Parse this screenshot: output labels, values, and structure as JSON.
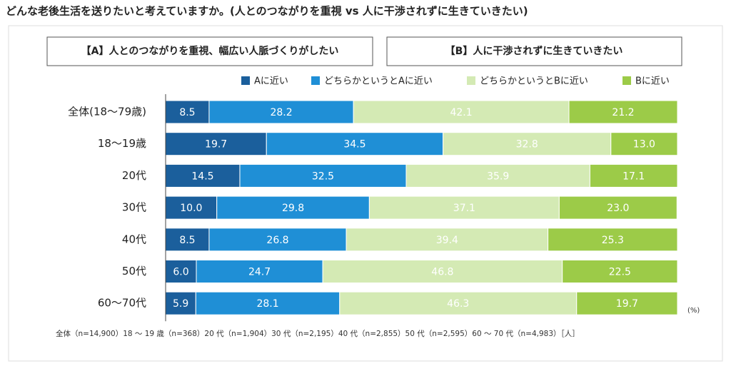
{
  "chart_data": {
    "type": "bar",
    "orientation": "horizontal",
    "stacked": true,
    "title": "どんな老後生活を送りたいと考えていますか。(人とのつながりを重視 vs 人に干渉されずに生きていきたい)",
    "headers": [
      "【A】人とのつながりを重視、幅広い人脈づくりがしたい",
      "【B】人に干渉されずに生きていきたい"
    ],
    "categories": [
      "全体(18〜79歳)",
      "18〜19歳",
      "20代",
      "30代",
      "40代",
      "50代",
      "60〜70代"
    ],
    "series": [
      {
        "name": "Aに近い",
        "color": "#1b5f9c",
        "values": [
          8.5,
          19.7,
          14.5,
          10,
          8.5,
          6,
          5.9
        ],
        "value_labels": [
          "8.5",
          "19.7",
          "14.5",
          "10.0",
          "8.5",
          "6.0",
          "5.9"
        ]
      },
      {
        "name": "どちらかというとAに近い",
        "color": "#1f8fd6",
        "values": [
          28.2,
          34.5,
          32.5,
          29.8,
          26.8,
          24.7,
          28.1
        ],
        "value_labels": [
          "28.2",
          "34.5",
          "32.5",
          "29.8",
          "26.8",
          "24.7",
          "28.1"
        ]
      },
      {
        "name": "どちらかというとBに近い",
        "color": "#d4eab4",
        "values": [
          42.1,
          32.8,
          35.9,
          37.1,
          39.4,
          46.8,
          46.3
        ],
        "value_labels": [
          "42.1",
          "32.8",
          "35.9",
          "37.1",
          "39.4",
          "46.8",
          "46.3"
        ]
      },
      {
        "name": "Bに近い",
        "color": "#9ccb48",
        "values": [
          21.2,
          13,
          17.1,
          23,
          25.3,
          22.5,
          19.7
        ],
        "value_labels": [
          "21.2",
          "13.0",
          "17.1",
          "23.0",
          "25.3",
          "22.5",
          "19.7"
        ]
      }
    ],
    "xlim": [
      0,
      100
    ],
    "unit": "(%)",
    "note": "全体（n=14,900）18 ～ 19 歳（n=368）20 代（n=1,904）30 代（n=2,195）40 代（n=2,855）50 代（n=2,595）60 ～ 70 代（n=4,983）［人］"
  }
}
